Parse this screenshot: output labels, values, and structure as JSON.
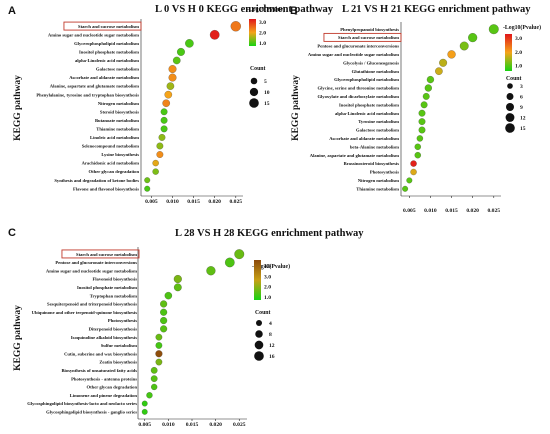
{
  "colors": {
    "low": "#16d312",
    "mid": "#f5a41a",
    "high": "#e0161a",
    "highlight_box": "#c0392b"
  },
  "legend_labels": {
    "color_title": "-Log10(Pvalue)",
    "size_title": "Count"
  },
  "chart_data": [
    {
      "panel": "A",
      "type": "scatter",
      "title": "L 0 VS H 0 KEGG enrichment pathway",
      "ylabel": "KEGG pathway",
      "xlabel": "",
      "xlim": [
        0.003,
        0.026
      ],
      "xticks": [
        "0.005",
        "0.010",
        "0.015",
        "0.020",
        "0.025"
      ],
      "xtick_values": [
        0.005,
        0.01,
        0.015,
        0.02,
        0.025
      ],
      "highlighted": "Starch and sucrose metabolism",
      "color_legend": {
        "ticks": [
          "3.0",
          "2.0",
          "1.0"
        ],
        "tick_values": [
          3.0,
          2.0,
          1.0
        ],
        "range": [
          0.7,
          3.3
        ]
      },
      "size_legend": {
        "values": [
          5,
          10,
          15
        ]
      },
      "grid": false,
      "legend_position": "right",
      "points": [
        {
          "pathway": "Starch and sucrose metabolism",
          "x": 0.025,
          "logp": 2.4,
          "count": 17
        },
        {
          "pathway": "Amino sugar and nucleotide sugar metabolism",
          "x": 0.02,
          "logp": 3.2,
          "count": 14
        },
        {
          "pathway": "Glycerophospholipid metabolism",
          "x": 0.014,
          "logp": 1.0,
          "count": 10
        },
        {
          "pathway": "Inositol phosphate metabolism",
          "x": 0.012,
          "logp": 1.0,
          "count": 8
        },
        {
          "pathway": "alpha-Linolenic acid metabolism",
          "x": 0.011,
          "logp": 1.1,
          "count": 7
        },
        {
          "pathway": "Galactose metabolism",
          "x": 0.01,
          "logp": 2.2,
          "count": 8
        },
        {
          "pathway": "Ascorbate and aldarate metabolism",
          "x": 0.01,
          "logp": 2.2,
          "count": 8
        },
        {
          "pathway": "Alanine, aspartate and glutamate metabolism",
          "x": 0.0095,
          "logp": 1.5,
          "count": 7
        },
        {
          "pathway": "Phenylalanine, tyrosine and tryptophan biosynthesis",
          "x": 0.009,
          "logp": 2.0,
          "count": 7
        },
        {
          "pathway": "Nitrogen metabolism",
          "x": 0.0085,
          "logp": 2.3,
          "count": 7
        },
        {
          "pathway": "Steroid biosynthesis",
          "x": 0.008,
          "logp": 1.0,
          "count": 5
        },
        {
          "pathway": "Butanoate metabolism",
          "x": 0.008,
          "logp": 1.0,
          "count": 5
        },
        {
          "pathway": "Thiamine metabolism",
          "x": 0.008,
          "logp": 1.0,
          "count": 5
        },
        {
          "pathway": "Linoleic acid metabolism",
          "x": 0.0075,
          "logp": 1.4,
          "count": 5
        },
        {
          "pathway": "Selenocompound metabolism",
          "x": 0.007,
          "logp": 1.4,
          "count": 5
        },
        {
          "pathway": "Lysine biosynthesis",
          "x": 0.007,
          "logp": 2.2,
          "count": 5
        },
        {
          "pathway": "Arachidonic acid metabolism",
          "x": 0.006,
          "logp": 1.9,
          "count": 4
        },
        {
          "pathway": "Other glycan degradation",
          "x": 0.006,
          "logp": 1.3,
          "count": 4
        },
        {
          "pathway": "Synthesis and degradation of ketone bodies",
          "x": 0.004,
          "logp": 1.2,
          "count": 3
        },
        {
          "pathway": "Flavone and flavonol biosynthesis",
          "x": 0.004,
          "logp": 1.0,
          "count": 3
        }
      ]
    },
    {
      "panel": "B",
      "type": "scatter",
      "title": "L 21 VS H 21 KEGG enrichment pathway",
      "ylabel": "KEGG pathway",
      "xlabel": "",
      "xlim": [
        0.0035,
        0.026
      ],
      "xticks": [
        "0.005",
        "0.010",
        "0.015",
        "0.020",
        "0.025"
      ],
      "xtick_values": [
        0.005,
        0.01,
        0.015,
        0.02,
        0.025
      ],
      "highlighted": "Starch and sucrose metabolism",
      "color_legend": {
        "ticks": [
          "3.0",
          "2.0",
          "1.0"
        ],
        "tick_values": [
          3.0,
          2.0,
          1.0
        ],
        "range": [
          0.6,
          3.3
        ]
      },
      "size_legend": {
        "values": [
          3,
          6,
          9,
          12,
          15
        ]
      },
      "grid": false,
      "legend_position": "right",
      "points": [
        {
          "pathway": "Phenylpropanoid biosynthesis",
          "x": 0.025,
          "logp": 1.0,
          "count": 15
        },
        {
          "pathway": "Starch and sucrose metabolism",
          "x": 0.02,
          "logp": 1.0,
          "count": 12
        },
        {
          "pathway": "Pentose and glucuronate interconversions",
          "x": 0.018,
          "logp": 1.2,
          "count": 11
        },
        {
          "pathway": "Amino sugar and nucleotide sugar metabolism",
          "x": 0.015,
          "logp": 2.0,
          "count": 9
        },
        {
          "pathway": "Glycolysis / Gluconeogenesis",
          "x": 0.013,
          "logp": 1.6,
          "count": 8
        },
        {
          "pathway": "Glutathione metabolism",
          "x": 0.012,
          "logp": 1.7,
          "count": 7
        },
        {
          "pathway": "Glycerophospholipid metabolism",
          "x": 0.01,
          "logp": 1.0,
          "count": 6
        },
        {
          "pathway": "Glycine, serine and threonine metabolism",
          "x": 0.0095,
          "logp": 1.0,
          "count": 6
        },
        {
          "pathway": "Glyoxylate and dicarboxylate metabolism",
          "x": 0.009,
          "logp": 1.0,
          "count": 5
        },
        {
          "pathway": "Inositol phosphate metabolism",
          "x": 0.0085,
          "logp": 1.0,
          "count": 5
        },
        {
          "pathway": "alpha-Linolenic acid metabolism",
          "x": 0.008,
          "logp": 1.0,
          "count": 5
        },
        {
          "pathway": "Tyrosine metabolism",
          "x": 0.008,
          "logp": 1.0,
          "count": 5
        },
        {
          "pathway": "Galactose metabolism",
          "x": 0.008,
          "logp": 1.0,
          "count": 5
        },
        {
          "pathway": "Ascorbate and aldarate metabolism",
          "x": 0.0075,
          "logp": 1.0,
          "count": 4
        },
        {
          "pathway": "beta-Alanine metabolism",
          "x": 0.007,
          "logp": 1.0,
          "count": 4
        },
        {
          "pathway": "Alanine, aspartate and glutamate metabolism",
          "x": 0.007,
          "logp": 1.0,
          "count": 4
        },
        {
          "pathway": "Brassinosteroid biosynthesis",
          "x": 0.006,
          "logp": 3.2,
          "count": 4
        },
        {
          "pathway": "Photosynthesis",
          "x": 0.006,
          "logp": 1.8,
          "count": 4
        },
        {
          "pathway": "Nitrogen metabolism",
          "x": 0.005,
          "logp": 1.0,
          "count": 3
        },
        {
          "pathway": "Thiamine metabolism",
          "x": 0.004,
          "logp": 1.0,
          "count": 3
        }
      ]
    },
    {
      "panel": "C",
      "type": "scatter",
      "title": "L 28 VS H 28 KEGG enrichment pathway",
      "ylabel": "KEGG pathway",
      "xlabel": "",
      "xlim": [
        0.004,
        0.026
      ],
      "xticks": [
        "0.005",
        "0.010",
        "0.015",
        "0.020",
        "0.025"
      ],
      "xtick_values": [
        0.005,
        0.01,
        0.015,
        0.02,
        0.025
      ],
      "highlighted": "Starch and sucrose metabolism",
      "color_legend": {
        "ticks": [
          "4.0",
          "3.0",
          "2.0",
          "1.0"
        ],
        "tick_values": [
          4.0,
          3.0,
          2.0,
          1.0
        ],
        "range": [
          0.7,
          4.6
        ],
        "colors": [
          "#16d312",
          "#c8a014",
          "#8c4a0c"
        ]
      },
      "size_legend": {
        "values": [
          4,
          8,
          12,
          16
        ]
      },
      "grid": false,
      "legend_position": "right",
      "points": [
        {
          "pathway": "Starch and sucrose metabolism",
          "x": 0.025,
          "logp": 1.6,
          "count": 16
        },
        {
          "pathway": "Pentose and glucuronate interconversions",
          "x": 0.023,
          "logp": 1.3,
          "count": 15
        },
        {
          "pathway": "Amino sugar and nucleotide sugar metabolism",
          "x": 0.019,
          "logp": 1.5,
          "count": 13
        },
        {
          "pathway": "Flavonoid biosynthesis",
          "x": 0.012,
          "logp": 1.8,
          "count": 9
        },
        {
          "pathway": "Inositol phosphate metabolism",
          "x": 0.012,
          "logp": 1.5,
          "count": 8
        },
        {
          "pathway": "Tryptophan metabolism",
          "x": 0.01,
          "logp": 1.3,
          "count": 7
        },
        {
          "pathway": "Sesquiterpenoid and triterpenoid biosynthesis",
          "x": 0.009,
          "logp": 1.5,
          "count": 6
        },
        {
          "pathway": "Ubiquinone and other terpenoid-quinone biosynthesis",
          "x": 0.009,
          "logp": 1.3,
          "count": 6
        },
        {
          "pathway": "Photosynthesis",
          "x": 0.009,
          "logp": 1.3,
          "count": 6
        },
        {
          "pathway": "Diterpenoid biosynthesis",
          "x": 0.009,
          "logp": 1.4,
          "count": 6
        },
        {
          "pathway": "Isoquinoline alkaloid biosynthesis",
          "x": 0.008,
          "logp": 1.6,
          "count": 5
        },
        {
          "pathway": "Sulfur metabolism",
          "x": 0.008,
          "logp": 1.2,
          "count": 5
        },
        {
          "pathway": "Cutin, suberine and wax biosynthesis",
          "x": 0.008,
          "logp": 4.5,
          "count": 6
        },
        {
          "pathway": "Zeatin biosynthesis",
          "x": 0.008,
          "logp": 1.8,
          "count": 5
        },
        {
          "pathway": "Biosynthesis of unsaturated fatty acids",
          "x": 0.007,
          "logp": 1.5,
          "count": 5
        },
        {
          "pathway": "Photosynthesis - antenna proteins",
          "x": 0.007,
          "logp": 1.4,
          "count": 5
        },
        {
          "pathway": "Other glycan degradation",
          "x": 0.007,
          "logp": 1.3,
          "count": 4
        },
        {
          "pathway": "Limonene and pinene degradation",
          "x": 0.006,
          "logp": 1.2,
          "count": 4
        },
        {
          "pathway": "Glycosphingolipid biosynthesis-lacto and neolacto series",
          "x": 0.005,
          "logp": 1.0,
          "count": 3
        },
        {
          "pathway": "Glycosphingolipid biosynthesis - ganglio series",
          "x": 0.005,
          "logp": 1.0,
          "count": 3
        }
      ]
    }
  ]
}
